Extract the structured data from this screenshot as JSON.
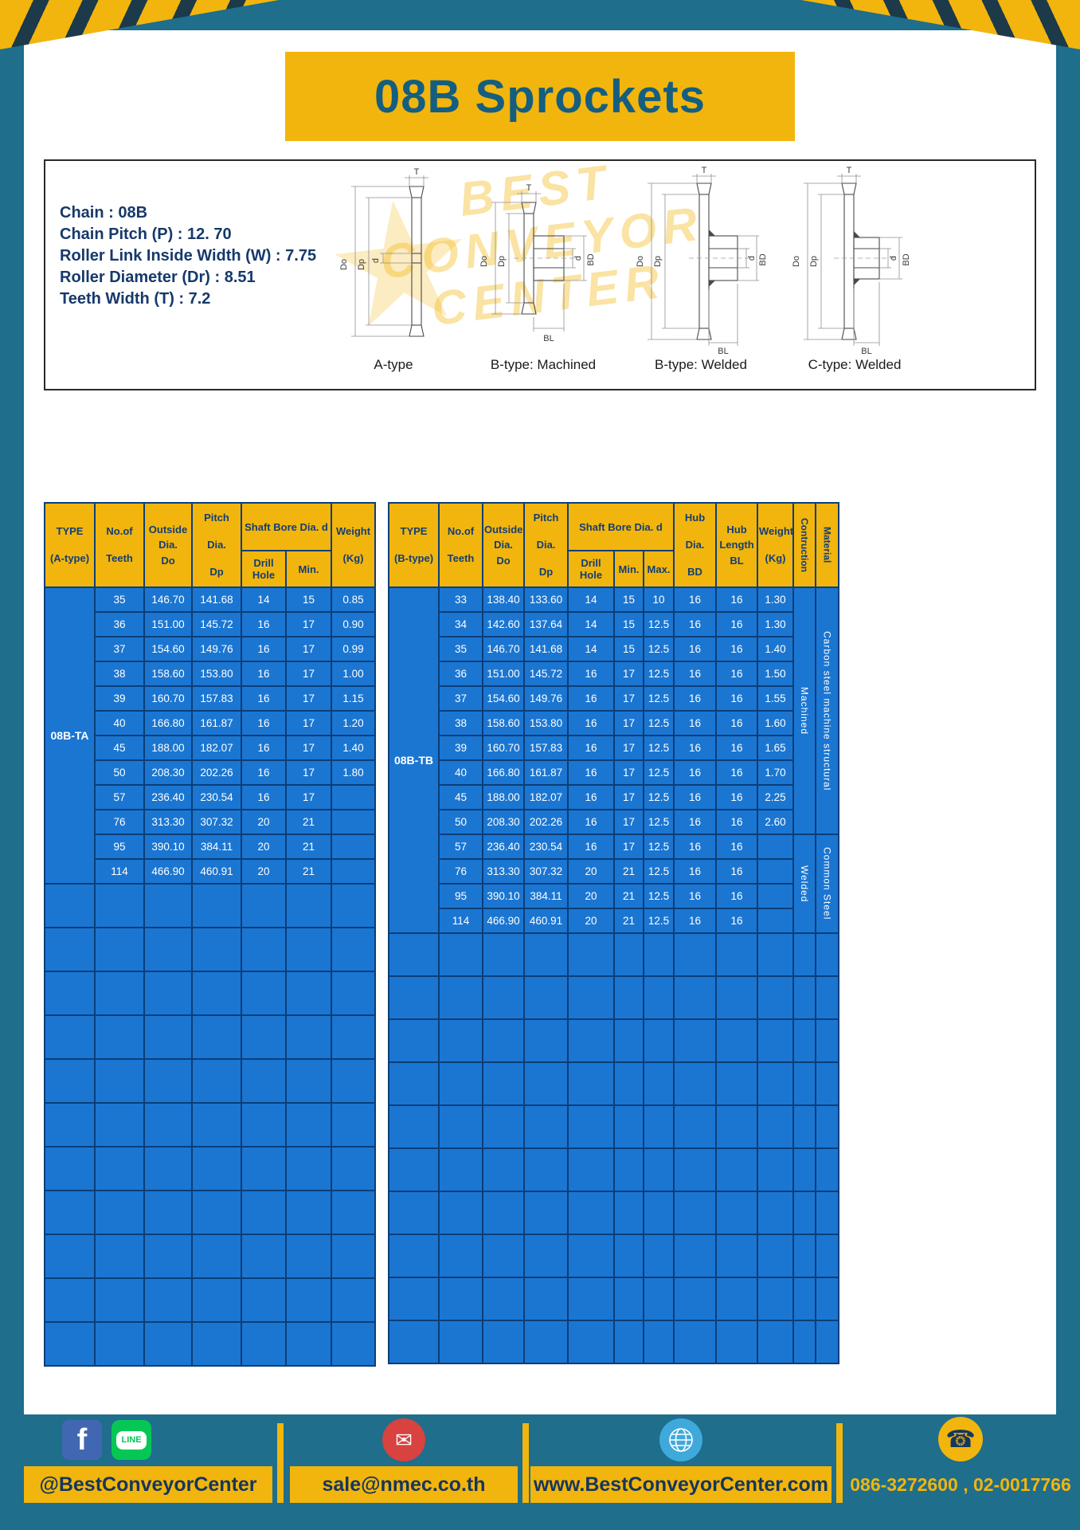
{
  "page": {
    "title": "08B Sprockets"
  },
  "colors": {
    "background_teal": "#1E6E8C",
    "accent_yellow": "#F2B50D",
    "table_blue": "#1B76D2",
    "grid_navy": "#0B3E78",
    "navy_text": "#16396B"
  },
  "specs": {
    "lines": [
      "Chain : 08B",
      "Chain Pitch (P) : 12. 70",
      "Roller Link Inside Width (W) : 7.75",
      "Roller Diameter (Dr) : 8.51",
      "Teeth Width (T) : 7.2"
    ]
  },
  "diagram": {
    "watermark": "BEST\nCONVEYOR\nCENTER",
    "captions": [
      "A-type",
      "B-type: Machined",
      "B-type: Welded",
      "C-type: Welded"
    ],
    "dims": {
      "t": "T",
      "od": "Do",
      "pd": "Dp",
      "d": "d",
      "bd": "BD",
      "bl": "BL"
    }
  },
  "left_table": {
    "headers": {
      "type": "TYPE\n(A-type)",
      "teeth": "No.of\nTeeth",
      "outside": "Outside\nDia.\nDo",
      "pitch": "Pitch Dia.\nDp",
      "shaft": "Shaft Bore Dia. d",
      "drill": "Drill Hole",
      "min": "Min.",
      "weight": "Weight\n(Kg)"
    },
    "type_value": "08B-TA",
    "rows": [
      [
        "35",
        "146.70",
        "141.68",
        "14",
        "15",
        "0.85"
      ],
      [
        "36",
        "151.00",
        "145.72",
        "16",
        "17",
        "0.90"
      ],
      [
        "37",
        "154.60",
        "149.76",
        "16",
        "17",
        "0.99"
      ],
      [
        "38",
        "158.60",
        "153.80",
        "16",
        "17",
        "1.00"
      ],
      [
        "39",
        "160.70",
        "157.83",
        "16",
        "17",
        "1.15"
      ],
      [
        "40",
        "166.80",
        "161.87",
        "16",
        "17",
        "1.20"
      ],
      [
        "45",
        "188.00",
        "182.07",
        "16",
        "17",
        "1.40"
      ],
      [
        "50",
        "208.30",
        "202.26",
        "16",
        "17",
        "1.80"
      ],
      [
        "57",
        "236.40",
        "230.54",
        "16",
        "17",
        ""
      ],
      [
        "76",
        "313.30",
        "307.32",
        "20",
        "21",
        ""
      ],
      [
        "95",
        "390.10",
        "384.11",
        "20",
        "21",
        ""
      ],
      [
        "114",
        "466.90",
        "460.91",
        "20",
        "21",
        ""
      ]
    ],
    "empty_rows": 11
  },
  "right_table": {
    "headers": {
      "type": "TYPE\n(B-type)",
      "teeth": "No.of\nTeeth",
      "outside": "Outside\nDia.\nDo",
      "pitch": "Pitch Dia.\nDp",
      "shaft": "Shaft Bore Dia. d",
      "drill": "Drill Hole",
      "min": "Min.",
      "max": "Max.",
      "hub_dia": "Hub Dia.\nBD",
      "hub_len": "Hub\nLength\nBL",
      "weight": "Weight\n(Kg)",
      "construction": "Contruction",
      "material": "Material"
    },
    "type_value": "08B-TB",
    "rows": [
      [
        "33",
        "138.40",
        "133.60",
        "14",
        "15",
        "10",
        "16",
        "16",
        "1.30"
      ],
      [
        "34",
        "142.60",
        "137.64",
        "14",
        "15",
        "12.5",
        "16",
        "16",
        "1.30"
      ],
      [
        "35",
        "146.70",
        "141.68",
        "14",
        "15",
        "12.5",
        "16",
        "16",
        "1.40"
      ],
      [
        "36",
        "151.00",
        "145.72",
        "16",
        "17",
        "12.5",
        "16",
        "16",
        "1.50"
      ],
      [
        "37",
        "154.60",
        "149.76",
        "16",
        "17",
        "12.5",
        "16",
        "16",
        "1.55"
      ],
      [
        "38",
        "158.60",
        "153.80",
        "16",
        "17",
        "12.5",
        "16",
        "16",
        "1.60"
      ],
      [
        "39",
        "160.70",
        "157.83",
        "16",
        "17",
        "12.5",
        "16",
        "16",
        "1.65"
      ],
      [
        "40",
        "166.80",
        "161.87",
        "16",
        "17",
        "12.5",
        "16",
        "16",
        "1.70"
      ],
      [
        "45",
        "188.00",
        "182.07",
        "16",
        "17",
        "12.5",
        "16",
        "16",
        "2.25"
      ],
      [
        "50",
        "208.30",
        "202.26",
        "16",
        "17",
        "12.5",
        "16",
        "16",
        "2.60"
      ],
      [
        "57",
        "236.40",
        "230.54",
        "16",
        "17",
        "12.5",
        "16",
        "16",
        ""
      ],
      [
        "76",
        "313.30",
        "307.32",
        "20",
        "21",
        "12.5",
        "16",
        "16",
        ""
      ],
      [
        "95",
        "390.10",
        "384.11",
        "20",
        "21",
        "12.5",
        "16",
        "16",
        ""
      ],
      [
        "114",
        "466.90",
        "460.91",
        "20",
        "21",
        "12.5",
        "16",
        "16",
        ""
      ]
    ],
    "construction_spans": [
      {
        "label": "Machined",
        "from": 0,
        "count": 10
      },
      {
        "label": "Welded",
        "from": 10,
        "count": 4
      }
    ],
    "material_spans": [
      {
        "label": "Carbon steel machine structural",
        "from": 0,
        "count": 10
      },
      {
        "label": "Common Steel",
        "from": 10,
        "count": 4
      }
    ],
    "empty_rows": 10
  },
  "footer": {
    "facebook_f": "f",
    "line_label": "LINE",
    "facebook_handle": "@BestConveyorCenter",
    "email": "sale@nmec.co.th",
    "website": "www.BestConveyorCenter.com",
    "phones": "086-3272600 , 02-0017766",
    "mail_glyph": "✉",
    "phone_glyph": "☎"
  }
}
